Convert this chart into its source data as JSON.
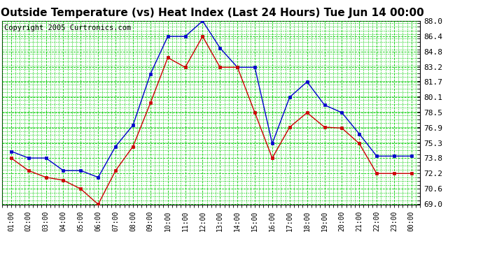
{
  "title": "Outside Temperature (vs) Heat Index (Last 24 Hours) Tue Jun 14 00:00",
  "copyright": "Copyright 2005 Curtronics.com",
  "x_labels": [
    "01:00",
    "02:00",
    "03:00",
    "04:00",
    "05:00",
    "06:00",
    "07:00",
    "08:00",
    "09:00",
    "10:00",
    "11:00",
    "12:00",
    "13:00",
    "14:00",
    "15:00",
    "16:00",
    "17:00",
    "18:00",
    "19:00",
    "20:00",
    "21:00",
    "22:00",
    "23:00",
    "00:00"
  ],
  "blue_data": [
    74.5,
    73.8,
    73.8,
    72.5,
    72.5,
    71.8,
    75.0,
    77.2,
    82.5,
    86.4,
    86.4,
    88.0,
    85.2,
    83.2,
    83.2,
    75.3,
    80.1,
    81.7,
    79.3,
    78.5,
    76.3,
    74.0,
    74.0,
    74.0
  ],
  "red_data": [
    73.8,
    72.5,
    71.8,
    71.5,
    70.6,
    69.0,
    72.5,
    75.0,
    79.5,
    84.2,
    83.2,
    86.4,
    83.2,
    83.2,
    78.5,
    73.8,
    77.0,
    78.5,
    77.0,
    76.9,
    75.3,
    72.2,
    72.2,
    72.2
  ],
  "ylim": [
    69.0,
    88.0
  ],
  "yticks": [
    69.0,
    70.6,
    72.2,
    73.8,
    75.3,
    76.9,
    78.5,
    80.1,
    81.7,
    83.2,
    84.8,
    86.4,
    88.0
  ],
  "blue_color": "#0000cc",
  "red_color": "#cc0000",
  "grid_color": "#00cc00",
  "bg_color": "#ffffff",
  "plot_bg_color": "#ffffff",
  "title_fontsize": 11,
  "copyright_fontsize": 7.5,
  "marker_size": 3,
  "line_width": 1.0
}
